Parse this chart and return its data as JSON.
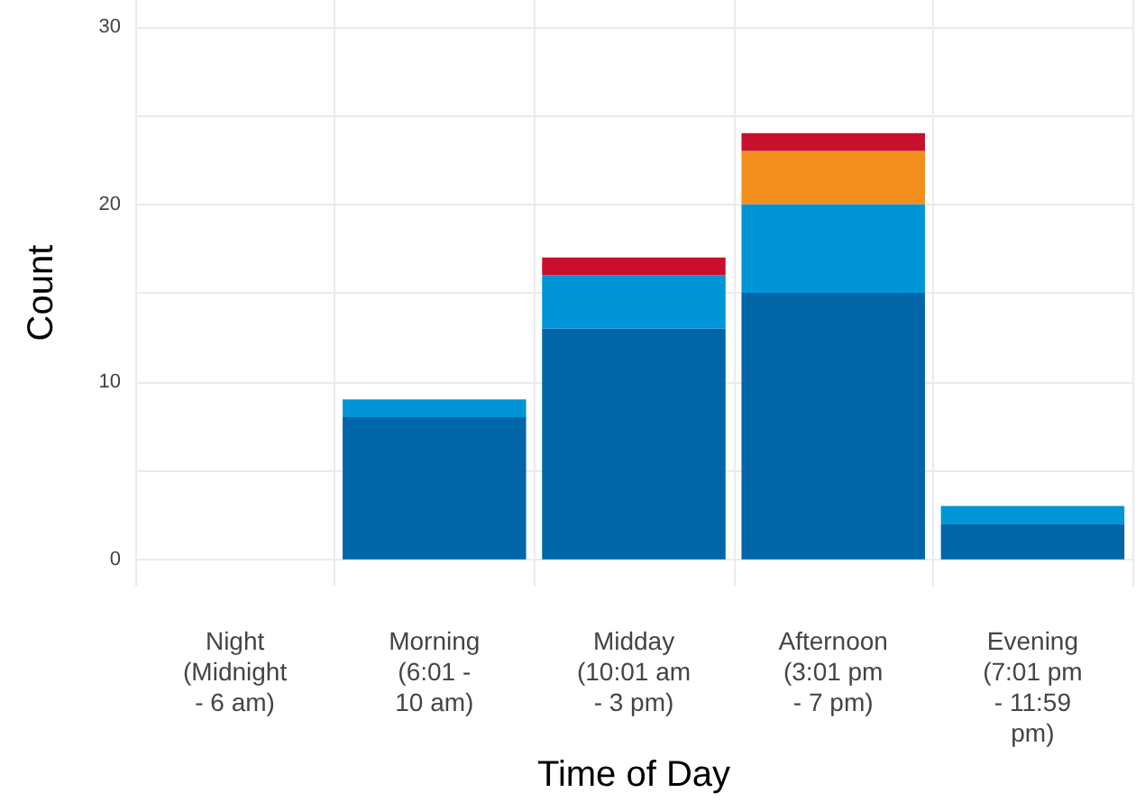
{
  "chart_data": {
    "type": "bar",
    "xlabel": "Time of Day",
    "ylabel": "Count",
    "categories": [
      "Night\n(Midnight\n- 6 am)",
      "Morning\n(6:01 -\n10 am)",
      "Midday\n(10:01 am\n- 3 pm)",
      "Afternoon\n(3:01 pm\n- 7 pm)",
      "Evening\n(7:01 pm\n- 11:59\npm)"
    ],
    "stacked": true,
    "series": [
      {
        "color": "#0066a8",
        "values": [
          0,
          8,
          13,
          15,
          2
        ]
      },
      {
        "color": "#0095d6",
        "values": [
          0,
          1,
          3,
          5,
          1
        ]
      },
      {
        "color": "#f28e1c",
        "values": [
          0,
          0,
          0,
          3,
          0
        ]
      },
      {
        "color": "#c8102e",
        "values": [
          0,
          0,
          1,
          1,
          0
        ]
      }
    ],
    "ylim": [
      -1.5,
      31.5
    ],
    "yticks": [
      0,
      {
        "value": 5,
        "label": null
      },
      10,
      {
        "value": 15,
        "label": null
      },
      20,
      {
        "value": 25,
        "label": null
      },
      30
    ],
    "grid": true
  }
}
